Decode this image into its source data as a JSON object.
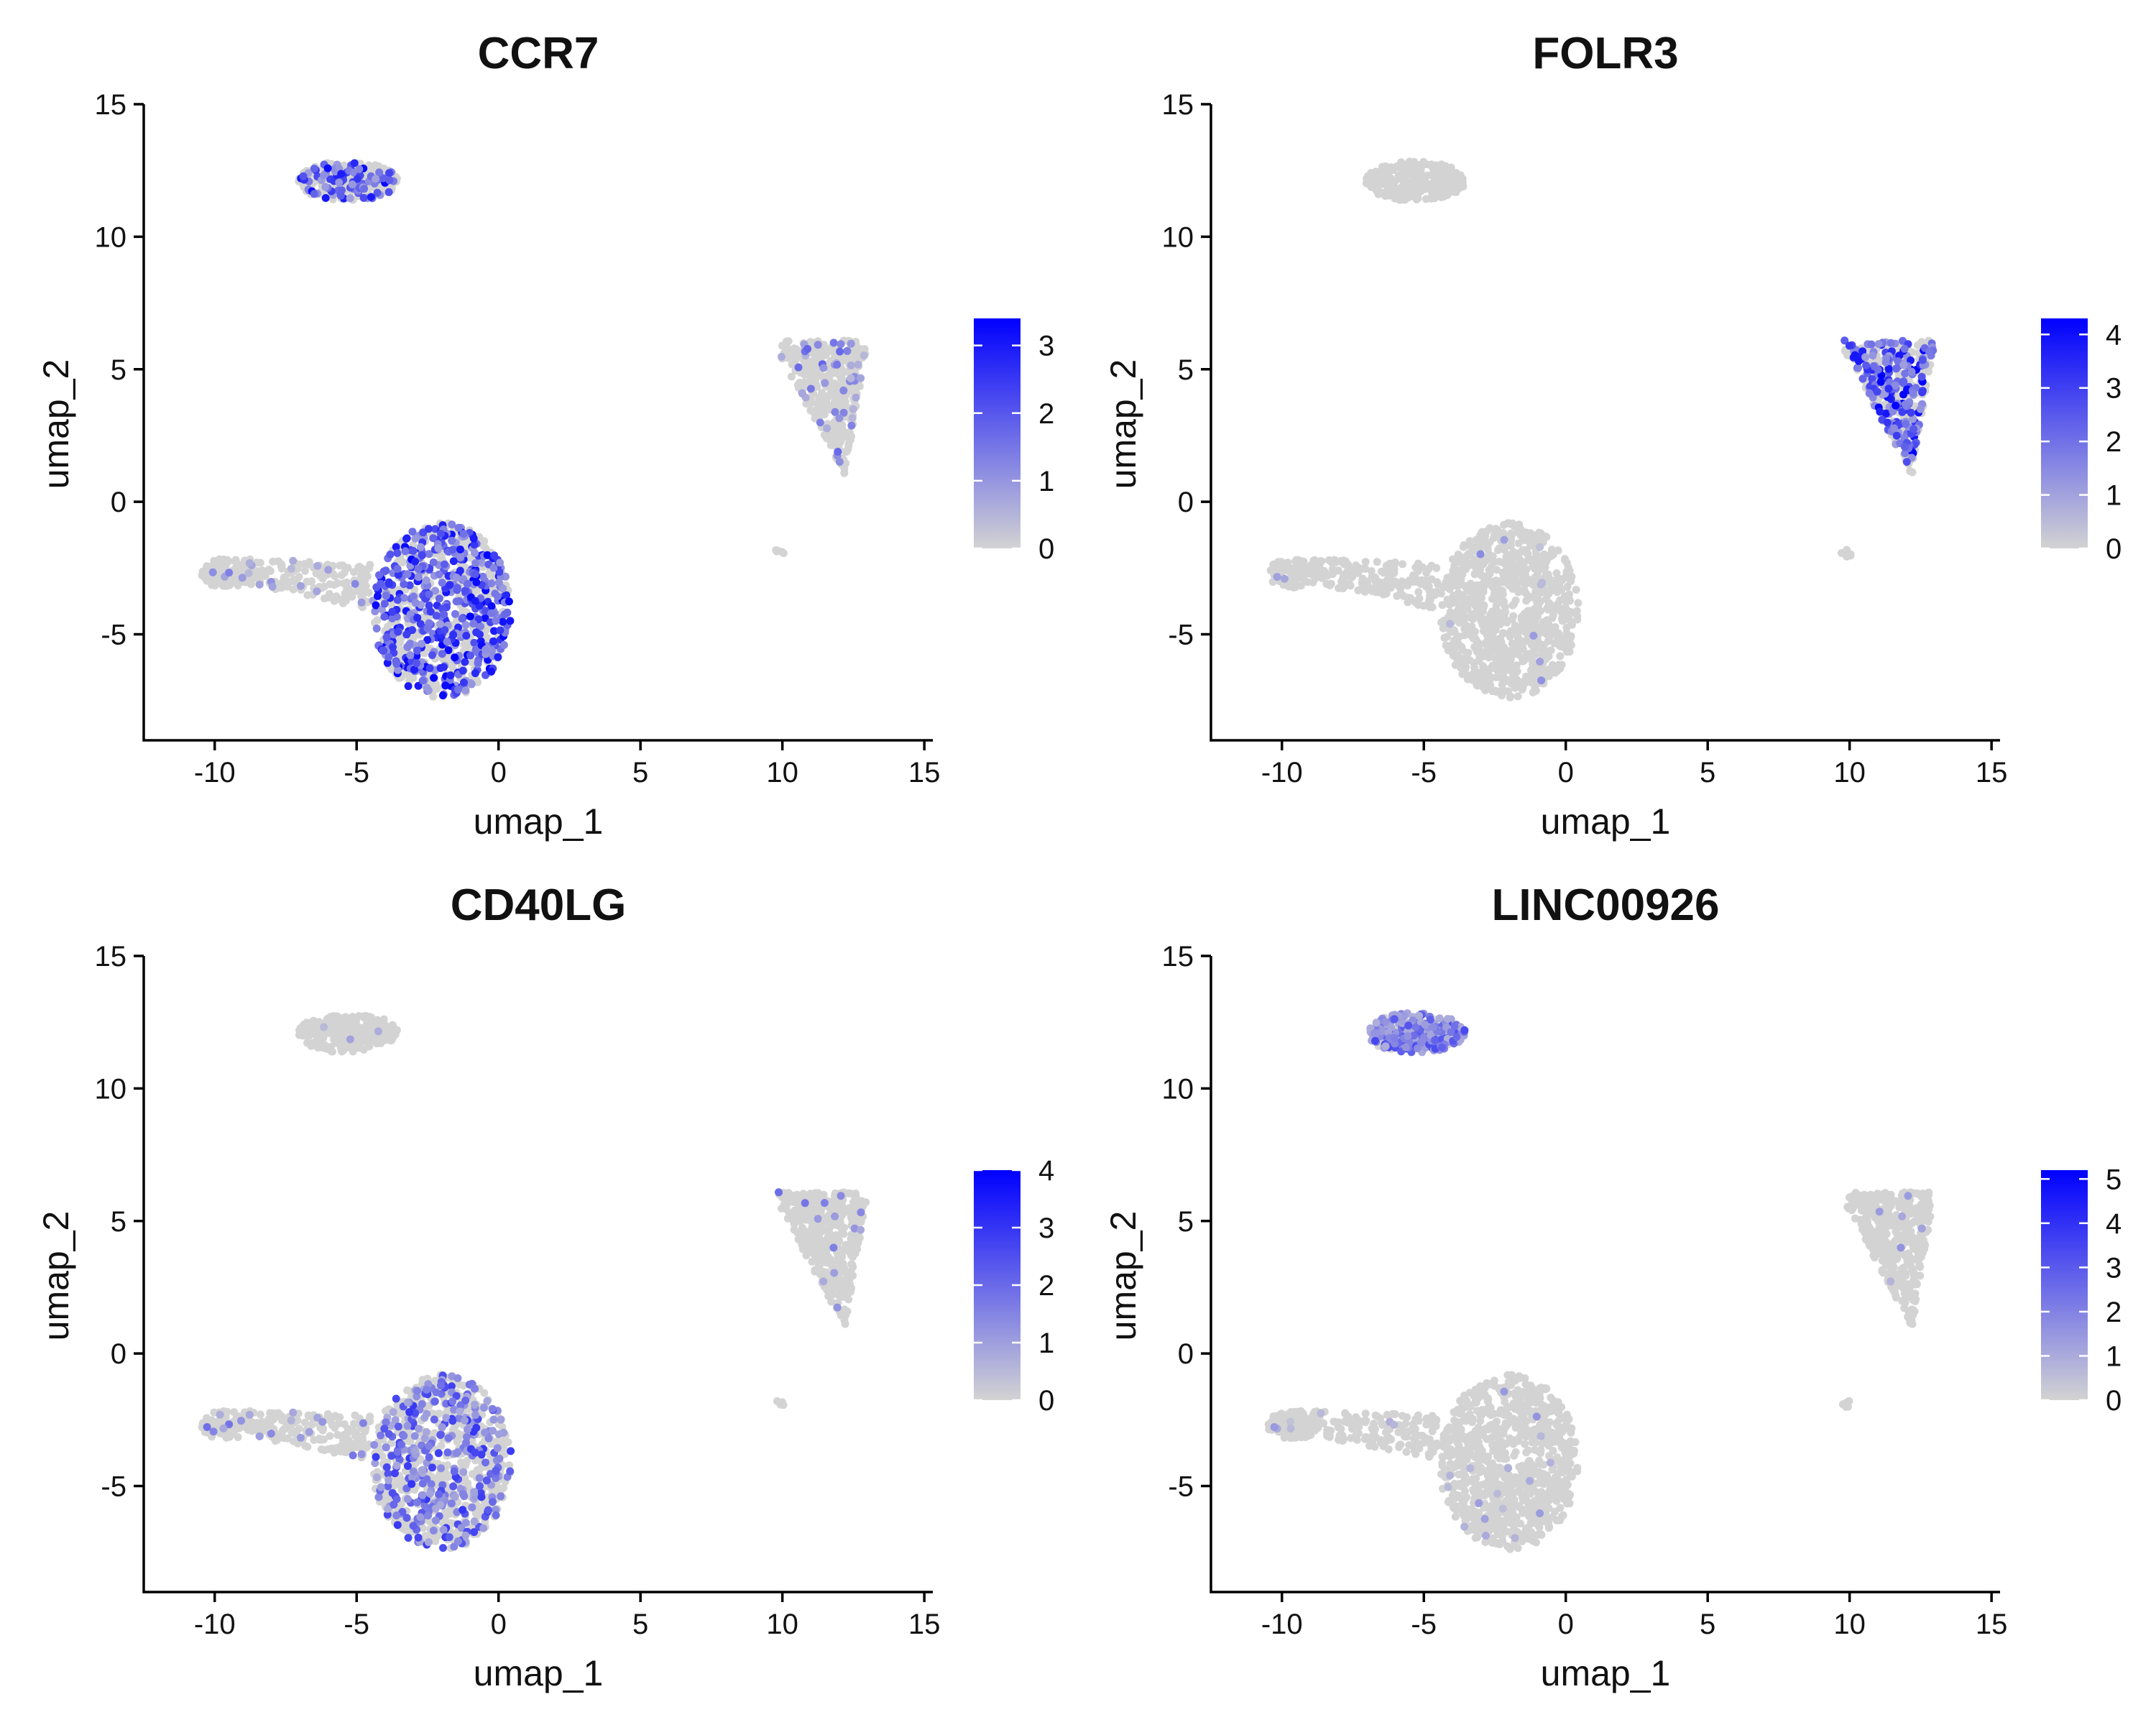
{
  "chart_data": [
    {
      "type": "scatter",
      "title": "CCR7",
      "xlabel": "umap_1",
      "ylabel": "umap_2",
      "xlim": [
        -12.5,
        15.3
      ],
      "ylim": [
        -9,
        15
      ],
      "xticks": [
        -10,
        -5,
        0,
        5,
        10,
        15
      ],
      "yticks": [
        -5,
        0,
        5,
        10,
        15
      ],
      "grid": false,
      "legend": "right",
      "color_low": "#d3d3d3",
      "color_high": "#0000ff",
      "color_scale_max": 3.4,
      "color_scale_ticks": [
        0,
        1,
        2,
        3
      ],
      "expression_by_cluster": [
        {
          "cluster": "upper-left",
          "share_expressing": 0.3,
          "max_expression": 3.3
        },
        {
          "cluster": "center-large",
          "share_expressing": 0.55,
          "max_expression": 3.4
        },
        {
          "cluster": "left-arm",
          "share_expressing": 0.1,
          "max_expression": 1.5
        },
        {
          "cluster": "right",
          "share_expressing": 0.1,
          "max_expression": 1.8
        },
        {
          "cluster": "right-small",
          "share_expressing": 0.0,
          "max_expression": 0
        }
      ]
    },
    {
      "type": "scatter",
      "title": "FOLR3",
      "xlabel": "umap_1",
      "ylabel": "umap_2",
      "xlim": [
        -12.5,
        15.3
      ],
      "ylim": [
        -9,
        15
      ],
      "xticks": [
        -10,
        -5,
        0,
        5,
        10,
        15
      ],
      "yticks": [
        -5,
        0,
        5,
        10,
        15
      ],
      "grid": false,
      "legend": "right",
      "color_low": "#d3d3d3",
      "color_high": "#0000ff",
      "color_scale_max": 4.3,
      "color_scale_ticks": [
        0,
        1,
        2,
        3,
        4
      ],
      "expression_by_cluster": [
        {
          "cluster": "upper-left",
          "share_expressing": 0.0,
          "max_expression": 0
        },
        {
          "cluster": "center-large",
          "share_expressing": 0.01,
          "max_expression": 1.5
        },
        {
          "cluster": "left-arm",
          "share_expressing": 0.01,
          "max_expression": 1.5
        },
        {
          "cluster": "right",
          "share_expressing": 0.45,
          "max_expression": 4.3
        },
        {
          "cluster": "right-small",
          "share_expressing": 0.0,
          "max_expression": 0
        }
      ]
    },
    {
      "type": "scatter",
      "title": "CD40LG",
      "xlabel": "umap_1",
      "ylabel": "umap_2",
      "xlim": [
        -12.5,
        15.3
      ],
      "ylim": [
        -9,
        15
      ],
      "xticks": [
        -10,
        -5,
        0,
        5,
        10,
        15
      ],
      "yticks": [
        -5,
        0,
        5,
        10,
        15
      ],
      "grid": false,
      "legend": "right",
      "color_low": "#d3d3d3",
      "color_high": "#0000ff",
      "color_scale_max": 4.0,
      "color_scale_ticks": [
        0,
        1,
        2,
        3,
        4
      ],
      "expression_by_cluster": [
        {
          "cluster": "upper-left",
          "share_expressing": 0.01,
          "max_expression": 1.5
        },
        {
          "cluster": "center-large",
          "share_expressing": 0.35,
          "max_expression": 3.0
        },
        {
          "cluster": "left-arm",
          "share_expressing": 0.08,
          "max_expression": 2.0
        },
        {
          "cluster": "right",
          "share_expressing": 0.04,
          "max_expression": 2.0
        },
        {
          "cluster": "right-small",
          "share_expressing": 0.0,
          "max_expression": 0
        }
      ]
    },
    {
      "type": "scatter",
      "title": "LINC00926",
      "xlabel": "umap_1",
      "ylabel": "umap_2",
      "xlim": [
        -12.5,
        15.3
      ],
      "ylim": [
        -9,
        15
      ],
      "xticks": [
        -10,
        -5,
        0,
        5,
        10,
        15
      ],
      "yticks": [
        -5,
        0,
        5,
        10,
        15
      ],
      "grid": false,
      "legend": "right",
      "color_low": "#d3d3d3",
      "color_high": "#0000ff",
      "color_scale_max": 5.2,
      "color_scale_ticks": [
        0,
        1,
        2,
        3,
        4,
        5
      ],
      "expression_by_cluster": [
        {
          "cluster": "upper-left",
          "share_expressing": 0.8,
          "max_expression": 3.5
        },
        {
          "cluster": "center-large",
          "share_expressing": 0.02,
          "max_expression": 2.0
        },
        {
          "cluster": "left-arm",
          "share_expressing": 0.02,
          "max_expression": 1.5
        },
        {
          "cluster": "right",
          "share_expressing": 0.03,
          "max_expression": 2.0
        },
        {
          "cluster": "right-small",
          "share_expressing": 0.0,
          "max_expression": 0
        }
      ]
    }
  ]
}
